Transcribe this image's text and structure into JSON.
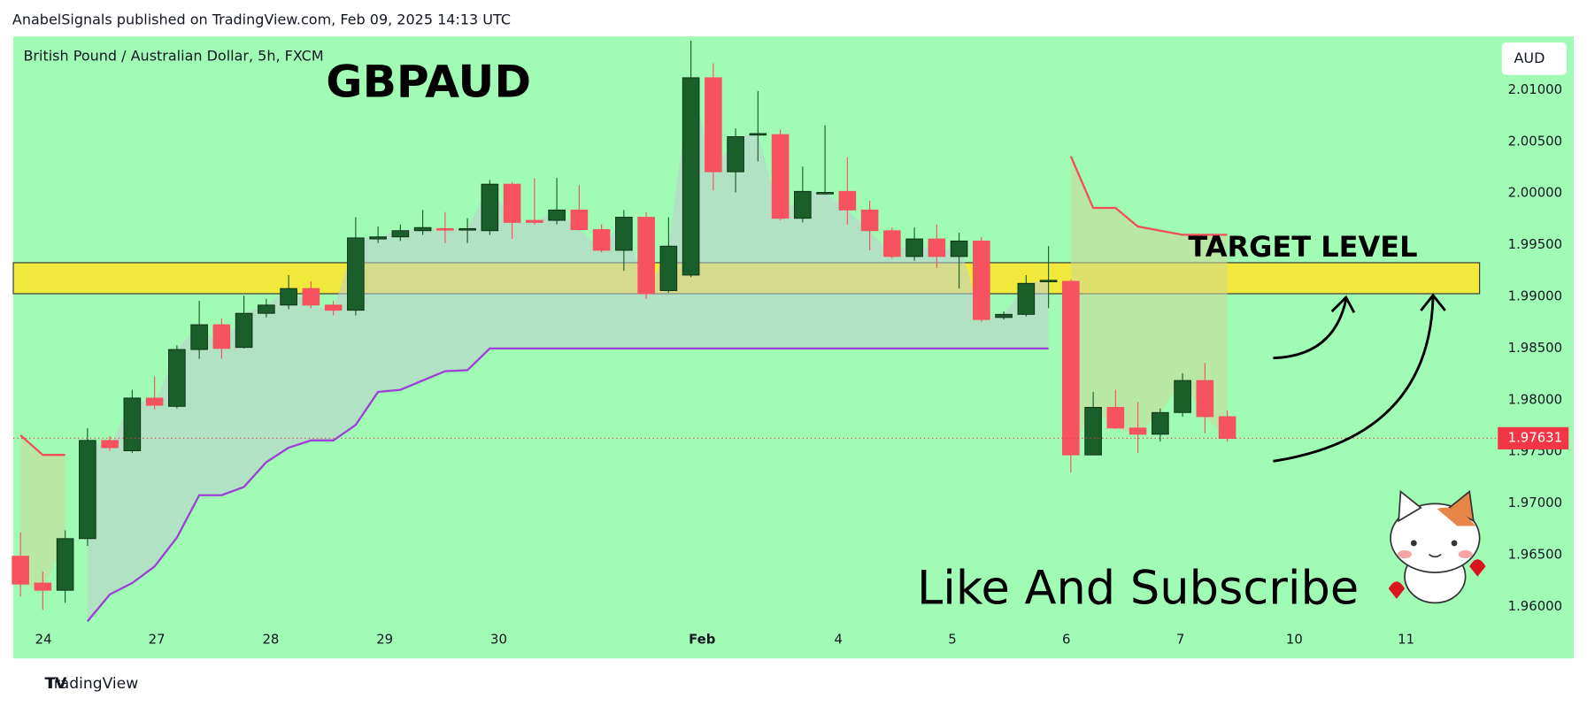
{
  "header": "AnabelSignals published on TradingView.com, Feb 09, 2025 14:13 UTC",
  "footer": "TradingView",
  "chart_data": {
    "type": "candlestick",
    "symbol": "British Pound / Australian Dollar, 5h, FXCM",
    "title": "GBPAUD",
    "currency": "AUD",
    "annotations": [
      "TARGET LEVEL",
      "Like And Subscribe"
    ],
    "up_color": "#1a5e2a",
    "down_color": "#f7525f",
    "open": [
      1.9649,
      1.9623,
      1.9616,
      1.9666,
      1.9761,
      1.9751,
      1.9802,
      1.9794,
      1.9849,
      1.9873,
      1.9851,
      1.9884,
      1.9892,
      1.9908,
      1.9892,
      1.9887,
      1.9956,
      1.9958,
      1.9964,
      1.9966,
      1.9965,
      1.9964,
      2.0009,
      1.9974,
      1.9974,
      1.9984,
      1.9965,
      1.9945,
      1.9977,
      1.9906,
      1.9921,
      2.0112,
      2.0021,
      2.0057,
      2.0057,
      1.9976,
      2.0001,
      2.0002,
      1.9984,
      1.9964,
      1.9939,
      1.9956,
      1.9939,
      1.9954,
      1.988,
      1.9883,
      1.9915,
      1.9915,
      1.9747,
      1.9793,
      1.9773,
      1.9767,
      1.9788,
      1.9819,
      1.9784
    ],
    "high": [
      1.9672,
      1.9634,
      1.9674,
      1.9773,
      1.9765,
      1.981,
      1.9823,
      1.9853,
      1.9896,
      1.9879,
      1.9901,
      1.9898,
      1.9921,
      1.9915,
      1.9896,
      1.9977,
      1.9968,
      1.997,
      1.9984,
      1.9982,
      1.9976,
      2.0013,
      2.0011,
      2.0015,
      2.0015,
      2.0008,
      1.997,
      1.9984,
      1.9982,
      1.9977,
      2.0148,
      2.0126,
      2.0063,
      2.0099,
      2.0062,
      2.0026,
      2.0066,
      2.0035,
      1.9993,
      1.9967,
      1.9967,
      1.997,
      1.9962,
      1.9958,
      1.9886,
      1.9921,
      1.9949,
      1.9917,
      1.9808,
      1.981,
      1.9798,
      1.9792,
      1.9826,
      1.9836,
      1.979
    ],
    "low": [
      1.961,
      1.9597,
      1.9604,
      1.9659,
      1.9751,
      1.9749,
      1.9791,
      1.9792,
      1.984,
      1.984,
      1.985,
      1.988,
      1.9888,
      1.9889,
      1.9882,
      1.9882,
      1.9952,
      1.9954,
      1.996,
      1.9952,
      1.9952,
      1.996,
      1.9956,
      1.997,
      1.997,
      1.9964,
      1.9943,
      1.9925,
      1.9898,
      1.9904,
      1.9919,
      2.0003,
      2.0001,
      2.0031,
      1.9974,
      1.9972,
      1.9999,
      1.997,
      1.9945,
      1.9937,
      1.9935,
      1.9928,
      1.9908,
      1.9876,
      1.9878,
      1.9881,
      1.9889,
      1.973,
      1.9747,
      1.9772,
      1.9749,
      1.976,
      1.9784,
      1.9768,
      1.976
    ],
    "close": [
      1.9622,
      1.9616,
      1.9666,
      1.9761,
      1.9754,
      1.9802,
      1.9795,
      1.9849,
      1.9873,
      1.985,
      1.9884,
      1.9892,
      1.9908,
      1.9892,
      1.9887,
      1.9957,
      1.9958,
      1.9964,
      1.9967,
      1.9965,
      1.9966,
      2.0009,
      1.9972,
      1.9972,
      1.9984,
      1.9965,
      1.9945,
      1.9977,
      1.9903,
      1.9949,
      2.0112,
      2.0021,
      2.0055,
      2.0058,
      1.9976,
      2.0002,
      2.0001,
      1.9984,
      1.9964,
      1.9939,
      1.9956,
      1.9939,
      1.9954,
      1.9878,
      1.9883,
      1.9913,
      1.9916,
      1.9747,
      1.9793,
      1.9773,
      1.9767,
      1.9788,
      1.9819,
      1.9784,
      1.9763
    ],
    "overlays": [
      {
        "color": "#9c3fd6",
        "fill": "rgba(190,205,205,0.55)",
        "values": [
          null,
          null,
          null,
          1.9586,
          1.9612,
          1.9623,
          1.9639,
          1.9667,
          1.9708,
          1.9708,
          1.9716,
          1.974,
          1.9754,
          1.9761,
          1.9761,
          1.9776,
          1.9808,
          1.981,
          1.9819,
          1.9828,
          1.9829,
          1.985,
          1.985,
          1.985,
          1.985,
          1.985,
          1.985,
          1.985,
          1.985,
          1.985,
          1.985,
          1.985,
          1.985,
          1.985,
          1.985,
          1.985,
          1.985,
          1.985,
          1.985,
          1.985,
          1.985,
          1.985,
          1.985,
          1.985,
          1.985,
          1.985,
          1.985,
          null,
          null,
          null,
          null,
          null,
          null,
          null,
          null
        ]
      },
      {
        "color": "#f0505a",
        "fill": "rgba(205,215,150,0.55)",
        "values": [
          1.9766,
          1.9747,
          1.9747,
          null,
          null,
          null,
          null,
          null,
          null,
          null,
          null,
          null,
          null,
          null,
          null,
          null,
          null,
          null,
          null,
          null,
          null,
          null,
          null,
          null,
          null,
          null,
          null,
          null,
          null,
          null,
          null,
          null,
          null,
          null,
          null,
          null,
          null,
          null,
          null,
          null,
          null,
          null,
          null,
          null,
          null,
          null,
          null,
          2.0036,
          1.9986,
          1.9986,
          1.9968,
          1.9964,
          1.996,
          1.996,
          1.996
        ]
      }
    ],
    "target_zone": [
      1.9903,
      1.9933
    ],
    "last_price": {
      "value": 1.97631,
      "label": "1.97631"
    },
    "ylim": [
      1.955,
      2.0152
    ],
    "yticks": [
      {
        "value": 1.96,
        "label": "1.96000"
      },
      {
        "value": 1.965,
        "label": "1.96500"
      },
      {
        "value": 1.97,
        "label": "1.97000"
      },
      {
        "value": 1.975,
        "label": "1.97500"
      },
      {
        "value": 1.98,
        "label": "1.98000"
      },
      {
        "value": 1.985,
        "label": "1.98500"
      },
      {
        "value": 1.99,
        "label": "1.99000"
      },
      {
        "value": 1.995,
        "label": "1.99500"
      },
      {
        "value": 2.0,
        "label": "2.00000"
      },
      {
        "value": 2.005,
        "label": "2.00500"
      },
      {
        "value": 2.01,
        "label": "2.01000"
      }
    ],
    "xlim": [
      -0.32,
      69.5
    ],
    "xticks": [
      {
        "value": 1.03,
        "label": "24"
      },
      {
        "value": 6.1,
        "label": "27"
      },
      {
        "value": 11.2,
        "label": "28"
      },
      {
        "value": 16.3,
        "label": "29"
      },
      {
        "value": 21.4,
        "label": "30"
      },
      {
        "value": 30.5,
        "label": "Feb"
      },
      {
        "value": 36.6,
        "label": "4"
      },
      {
        "value": 41.7,
        "label": "5"
      },
      {
        "value": 46.8,
        "label": "6"
      },
      {
        "value": 51.9,
        "label": "7"
      },
      {
        "value": 57,
        "label": "10"
      },
      {
        "value": 62,
        "label": "11"
      }
    ]
  }
}
